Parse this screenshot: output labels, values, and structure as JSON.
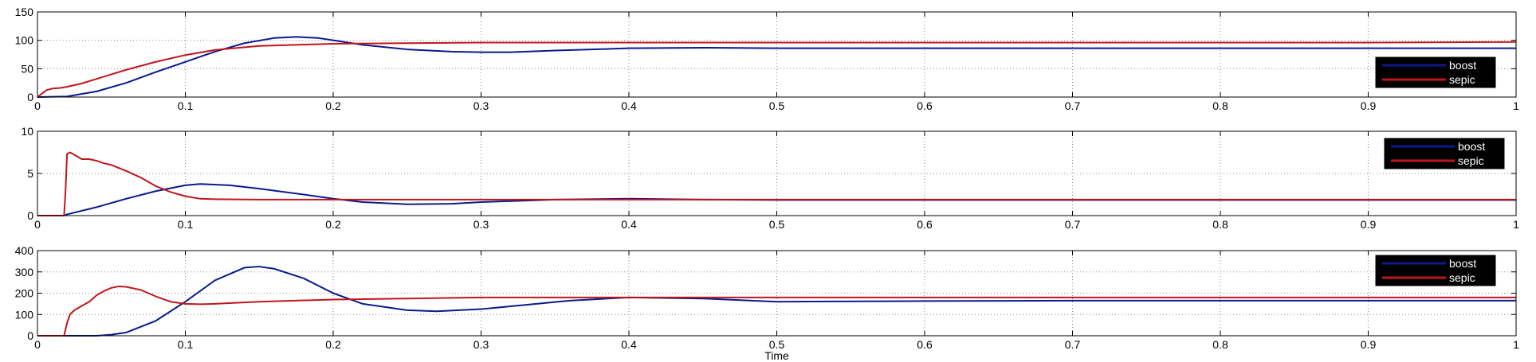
{
  "chart_data": [
    {
      "type": "line",
      "xlabel": "",
      "ylabel": "",
      "xlim": [
        0,
        1
      ],
      "ylim": [
        0,
        150
      ],
      "xticks": [
        0,
        0.1,
        0.2,
        0.3,
        0.4,
        0.5,
        0.6,
        0.7,
        0.8,
        0.9,
        1
      ],
      "xtick_labels": [
        "0",
        "0.1",
        "0.2",
        "0.3",
        "0.4",
        "0.5",
        "0.6",
        "0.7",
        "0.8",
        "0.9",
        "1"
      ],
      "yticks": [
        0,
        50,
        100,
        150
      ],
      "ytick_labels": [
        "0",
        "50",
        "100",
        "150"
      ],
      "grid": true,
      "legend_position": "right",
      "colors": {
        "boost": "#0a1a8c",
        "sepic": "#c0161b"
      },
      "series": [
        {
          "name": "boost",
          "x": [
            0,
            0.02,
            0.04,
            0.06,
            0.08,
            0.1,
            0.12,
            0.14,
            0.16,
            0.175,
            0.19,
            0.2,
            0.22,
            0.25,
            0.28,
            0.3,
            0.32,
            0.35,
            0.4,
            0.45,
            0.5,
            0.6,
            0.7,
            0.8,
            0.9,
            1.0
          ],
          "y": [
            0,
            1,
            10,
            25,
            44,
            62,
            80,
            95,
            104,
            106,
            104,
            100,
            92,
            84,
            80,
            79,
            79,
            82,
            86,
            87,
            86,
            86,
            86,
            86,
            86,
            86
          ]
        },
        {
          "name": "sepic",
          "x": [
            0,
            0.003,
            0.006,
            0.01,
            0.015,
            0.02,
            0.03,
            0.04,
            0.06,
            0.08,
            0.1,
            0.12,
            0.15,
            0.2,
            0.25,
            0.3,
            0.4,
            0.5,
            0.6,
            0.7,
            0.8,
            0.9,
            1.0
          ],
          "y": [
            0,
            6,
            12,
            15,
            16,
            18,
            24,
            32,
            48,
            62,
            74,
            83,
            90,
            94,
            95,
            96,
            96,
            96,
            96,
            96,
            96,
            96,
            97
          ]
        }
      ]
    },
    {
      "type": "line",
      "xlabel": "",
      "ylabel": "",
      "xlim": [
        0,
        1
      ],
      "ylim": [
        0,
        10
      ],
      "xticks": [
        0,
        0.1,
        0.2,
        0.3,
        0.4,
        0.5,
        0.6,
        0.7,
        0.8,
        0.9,
        1
      ],
      "xtick_labels": [
        "0",
        "0.1",
        "0.2",
        "0.3",
        "0.4",
        "0.5",
        "0.6",
        "0.7",
        "0.8",
        "0.9",
        "1"
      ],
      "yticks": [
        0,
        5,
        10
      ],
      "ytick_labels": [
        "0",
        "5",
        "10"
      ],
      "grid": true,
      "legend_position": "top-right",
      "colors": {
        "boost": "#0a1a8c",
        "sepic": "#c0161b"
      },
      "series": [
        {
          "name": "boost",
          "x": [
            0,
            0.018,
            0.02,
            0.04,
            0.06,
            0.08,
            0.1,
            0.11,
            0.13,
            0.15,
            0.18,
            0.2,
            0.22,
            0.25,
            0.28,
            0.3,
            0.35,
            0.4,
            0.45,
            0.5,
            0.6,
            0.7,
            0.8,
            0.9,
            1.0
          ],
          "y": [
            0,
            0,
            0.15,
            1.0,
            2.0,
            2.9,
            3.6,
            3.75,
            3.6,
            3.2,
            2.5,
            2.0,
            1.6,
            1.35,
            1.4,
            1.6,
            1.9,
            2.0,
            1.9,
            1.85,
            1.85,
            1.85,
            1.85,
            1.85,
            1.85
          ]
        },
        {
          "name": "sepic",
          "x": [
            0,
            0.018,
            0.019,
            0.02,
            0.022,
            0.025,
            0.03,
            0.035,
            0.04,
            0.045,
            0.05,
            0.06,
            0.07,
            0.08,
            0.09,
            0.1,
            0.11,
            0.12,
            0.15,
            0.2,
            0.3,
            0.4,
            0.5,
            0.6,
            0.7,
            0.8,
            0.9,
            1.0
          ],
          "y": [
            0,
            0,
            3.0,
            7.3,
            7.5,
            7.2,
            6.7,
            6.7,
            6.5,
            6.2,
            6.0,
            5.3,
            4.5,
            3.5,
            2.8,
            2.3,
            2.0,
            1.95,
            1.9,
            1.9,
            1.9,
            1.9,
            1.9,
            1.9,
            1.9,
            1.9,
            1.9,
            1.9
          ]
        }
      ]
    },
    {
      "type": "line",
      "xlabel": "Time",
      "ylabel": "",
      "xlim": [
        0,
        1
      ],
      "ylim": [
        0,
        400
      ],
      "xticks": [
        0,
        0.1,
        0.2,
        0.3,
        0.4,
        0.5,
        0.6,
        0.7,
        0.8,
        0.9,
        1
      ],
      "xtick_labels": [
        "0",
        "0.1",
        "0.2",
        "0.3",
        "0.4",
        "0.5",
        "0.6",
        "0.7",
        "0.8",
        "0.9",
        "1"
      ],
      "yticks": [
        0,
        100,
        200,
        300,
        400
      ],
      "ytick_labels": [
        "0",
        "100",
        "200",
        "300",
        "400"
      ],
      "grid": true,
      "legend_position": "top-right",
      "colors": {
        "boost": "#0a1a8c",
        "sepic": "#c0161b"
      },
      "series": [
        {
          "name": "boost",
          "x": [
            0,
            0.04,
            0.05,
            0.06,
            0.08,
            0.1,
            0.12,
            0.14,
            0.15,
            0.16,
            0.18,
            0.2,
            0.22,
            0.25,
            0.27,
            0.3,
            0.33,
            0.36,
            0.4,
            0.45,
            0.5,
            0.6,
            0.7,
            0.8,
            0.9,
            1.0
          ],
          "y": [
            0,
            0,
            5,
            15,
            70,
            160,
            260,
            320,
            325,
            315,
            270,
            200,
            150,
            120,
            115,
            125,
            145,
            165,
            180,
            175,
            160,
            163,
            165,
            165,
            165,
            165
          ]
        },
        {
          "name": "sepic",
          "x": [
            0,
            0.018,
            0.02,
            0.022,
            0.025,
            0.03,
            0.035,
            0.04,
            0.045,
            0.05,
            0.055,
            0.06,
            0.07,
            0.08,
            0.09,
            0.1,
            0.11,
            0.12,
            0.15,
            0.2,
            0.25,
            0.3,
            0.4,
            0.5,
            0.6,
            0.7,
            0.8,
            0.9,
            1.0
          ],
          "y": [
            0,
            0,
            60,
            100,
            120,
            140,
            160,
            190,
            210,
            225,
            232,
            230,
            215,
            185,
            160,
            150,
            148,
            150,
            160,
            170,
            175,
            180,
            180,
            180,
            180,
            180,
            180,
            180,
            180
          ]
        }
      ]
    }
  ]
}
